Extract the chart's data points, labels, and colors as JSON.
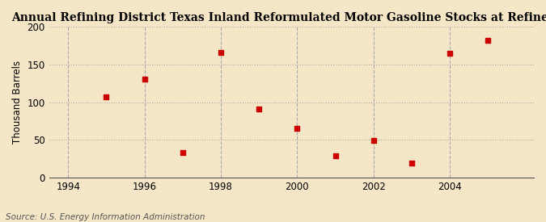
{
  "title": "Annual Refining District Texas Inland Reformulated Motor Gasoline Stocks at Refineries",
  "ylabel": "Thousand Barrels",
  "source": "Source: U.S. Energy Information Administration",
  "background_color": "#f5e6c8",
  "x": [
    1995,
    1996,
    1997,
    1998,
    1999,
    2000,
    2001,
    2002,
    2003,
    2004,
    2005
  ],
  "y": [
    107,
    131,
    33,
    166,
    91,
    65,
    29,
    49,
    19,
    165,
    182
  ],
  "marker_color": "#cc0000",
  "marker_size": 5,
  "xlim": [
    1993.5,
    2006.2
  ],
  "ylim": [
    0,
    200
  ],
  "yticks": [
    0,
    50,
    100,
    150,
    200
  ],
  "xticks": [
    1994,
    1996,
    1998,
    2000,
    2002,
    2004
  ],
  "h_grid_color": "#aaaaaa",
  "v_grid_color": "#aaaaaa",
  "title_fontsize": 10,
  "axis_fontsize": 8.5,
  "source_fontsize": 7.5
}
